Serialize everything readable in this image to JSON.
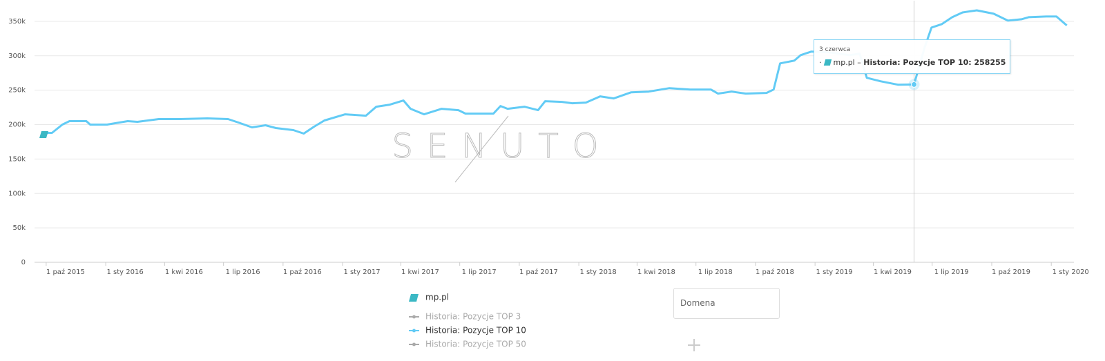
{
  "chart_data": {
    "type": "line",
    "watermark": "SENUTO",
    "xlim": [
      "2015-09-13",
      "2020-02-05"
    ],
    "ylim": [
      0,
      380000
    ],
    "grid": true,
    "yticks": [
      0,
      {
        "value": 50000,
        "label": "50k"
      },
      {
        "value": 100000,
        "label": "100k"
      },
      {
        "value": 150000,
        "label": "150k"
      },
      {
        "value": 200000,
        "label": "200k"
      },
      {
        "value": 250000,
        "label": "250k"
      },
      {
        "value": 300000,
        "label": "300k"
      },
      {
        "value": 350000,
        "label": "350k"
      }
    ],
    "xticks": [
      {
        "value": "2015-10-01",
        "label": "1 paź 2015"
      },
      {
        "value": "2016-01-01",
        "label": "1 sty 2016"
      },
      {
        "value": "2016-04-01",
        "label": "1 kwi 2016"
      },
      {
        "value": "2016-07-01",
        "label": "1 lip 2016"
      },
      {
        "value": "2016-10-01",
        "label": "1 paź 2016"
      },
      {
        "value": "2017-01-01",
        "label": "1 sty 2017"
      },
      {
        "value": "2017-04-01",
        "label": "1 kwi 2017"
      },
      {
        "value": "2017-07-01",
        "label": "1 lip 2017"
      },
      {
        "value": "2017-10-01",
        "label": "1 paź 2017"
      },
      {
        "value": "2018-01-01",
        "label": "1 sty 2018"
      },
      {
        "value": "2018-04-01",
        "label": "1 kwi 2018"
      },
      {
        "value": "2018-07-01",
        "label": "1 lip 2018"
      },
      {
        "value": "2018-10-01",
        "label": "1 paź 2018"
      },
      {
        "value": "2019-01-01",
        "label": "1 sty 2019"
      },
      {
        "value": "2019-04-01",
        "label": "1 kwi 2019"
      },
      {
        "value": "2019-07-01",
        "label": "1 lip 2019"
      },
      {
        "value": "2019-10-01",
        "label": "1 paź 2019"
      },
      {
        "value": "2020-01-01",
        "label": "1 sty 2020"
      }
    ],
    "x": [
      "2015-09-24",
      "2015-10-10",
      "2015-10-26",
      "2015-11-06",
      "2015-12-02",
      "2015-12-08",
      "2016-01-03",
      "2016-02-04",
      "2016-02-19",
      "2016-03-23",
      "2016-04-24",
      "2016-06-06",
      "2016-07-08",
      "2016-07-24",
      "2016-08-14",
      "2016-09-04",
      "2016-09-20",
      "2016-10-17",
      "2016-11-02",
      "2016-11-18",
      "2016-12-04",
      "2017-01-05",
      "2017-02-06",
      "2017-02-22",
      "2017-03-15",
      "2017-04-05",
      "2017-04-16",
      "2017-05-07",
      "2017-06-03",
      "2017-06-29",
      "2017-07-10",
      "2017-08-22",
      "2017-09-02",
      "2017-09-13",
      "2017-10-09",
      "2017-10-30",
      "2017-11-10",
      "2017-12-06",
      "2017-12-22",
      "2018-01-12",
      "2018-02-03",
      "2018-02-24",
      "2018-03-23",
      "2018-04-19",
      "2018-05-21",
      "2018-06-22",
      "2018-07-24",
      "2018-08-04",
      "2018-08-25",
      "2018-09-16",
      "2018-10-18",
      "2018-10-29",
      "2018-11-08",
      "2018-11-30",
      "2018-12-10",
      "2018-12-26",
      "2019-01-22",
      "2019-02-23",
      "2019-03-11",
      "2019-03-22",
      "2019-04-12",
      "2019-05-09",
      "2019-06-03",
      "2019-06-19",
      "2019-06-30",
      "2019-07-16",
      "2019-08-01",
      "2019-08-17",
      "2019-09-08",
      "2019-10-04",
      "2019-10-26",
      "2019-11-16",
      "2019-11-27",
      "2019-12-24",
      "2020-01-09",
      "2020-01-25"
    ],
    "series": [
      {
        "name": "Historia: Pozycje TOP 10",
        "color": "#62cbf5",
        "values": [
          188000,
          188000,
          200000,
          205000,
          205000,
          200000,
          200000,
          205000,
          204000,
          208000,
          208000,
          209000,
          208000,
          203000,
          196000,
          199000,
          195000,
          192000,
          187000,
          197000,
          206000,
          215000,
          213000,
          226000,
          229000,
          235000,
          223000,
          215000,
          223000,
          221000,
          216000,
          216000,
          227000,
          223000,
          226000,
          221000,
          234000,
          233000,
          231000,
          232000,
          241000,
          238000,
          247000,
          248000,
          253000,
          251000,
          251000,
          245000,
          248000,
          245000,
          246000,
          251000,
          289000,
          293000,
          301000,
          306000,
          305000,
          301000,
          303000,
          268000,
          263000,
          258000,
          258255,
          311000,
          341000,
          346000,
          356000,
          363000,
          366000,
          361000,
          351000,
          353000,
          356000,
          357000,
          357000,
          344000
        ]
      }
    ],
    "hidden_series": [
      {
        "name": "Historia: Pozycje TOP 3",
        "color": "#aaaaaa"
      },
      {
        "name": "Historia: Pozycje TOP 50",
        "color": "#aaaaaa"
      }
    ],
    "legend": {
      "group": "mp.pl"
    },
    "tooltip": {
      "title": "3 czerwca"
    },
    "domain_placeholder": "Domena"
  }
}
